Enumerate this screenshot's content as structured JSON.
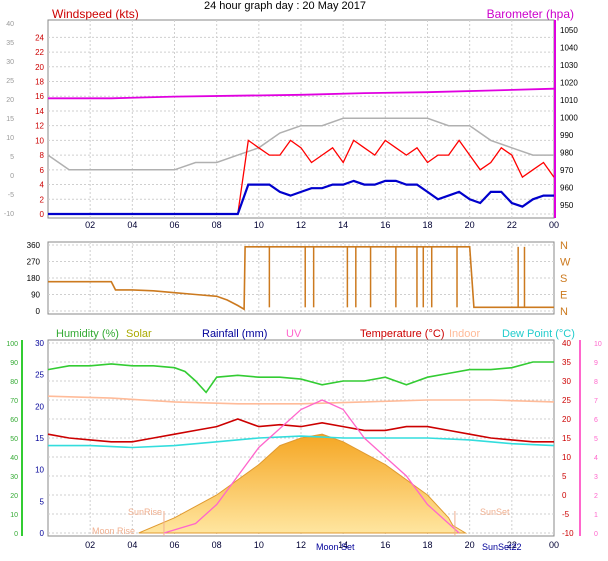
{
  "title": "24 hour graph day : 20 May 2017",
  "colors": {
    "wind_speed": "#ff0000",
    "wind_avg": "#0000cc",
    "gust_grey": "#b0b0b0",
    "barometer": "#e000e0",
    "wind_dir": "#cc7a1f",
    "humidity": "#33cc33",
    "solar": "#cccc00",
    "rainfall": "#000099",
    "uv": "#ff66cc",
    "temperature": "#cc0000",
    "indoor": "#ffbb99",
    "dewpoint": "#33dddd"
  },
  "x_ticks": [
    "02",
    "04",
    "06",
    "08",
    "10",
    "12",
    "14",
    "16",
    "18",
    "20",
    "22",
    "00"
  ],
  "chart_data": [
    {
      "type": "line",
      "panel": "wind",
      "title": "",
      "left_label": "Windspeed (kts)",
      "right_label": "Barometer (hpa)",
      "y_ticks_red": [
        "24",
        "22",
        "20",
        "18",
        "16",
        "14",
        "12",
        "10",
        "8",
        "6",
        "4",
        "2",
        "0"
      ],
      "y_ticks_grey": [
        "40",
        "35",
        "30",
        "25",
        "20",
        "15",
        "10",
        "5",
        "0",
        "-5",
        "-10"
      ],
      "y_ticks_baro": [
        "1050",
        "1040",
        "1030",
        "1020",
        "1010",
        "1000",
        "990",
        "980",
        "970",
        "960",
        "950"
      ],
      "ylim_kts": [
        0,
        25
      ],
      "ylim_baro": [
        945,
        1050
      ],
      "series": [
        {
          "id": "gust",
          "x": [
            0,
            0.5,
            1,
            1.5,
            2,
            2.5,
            3,
            3.5,
            4,
            4.5,
            5,
            5.5,
            6,
            6.5,
            7,
            7.5,
            8,
            8.5,
            9,
            9.5,
            10,
            10.5,
            11,
            11.5,
            12,
            12.5,
            13,
            13.5,
            14,
            14.5,
            15,
            15.5,
            16,
            16.5,
            17,
            17.5,
            18,
            18.5,
            19,
            19.5,
            20,
            20.5,
            21,
            21.5,
            22,
            22.5,
            23,
            23.5,
            24
          ],
          "y": [
            0,
            0,
            0,
            0,
            0,
            0,
            0,
            0,
            0,
            0,
            0,
            0,
            0,
            0,
            0,
            0,
            0,
            0,
            0,
            10,
            9,
            8,
            8,
            10,
            9,
            7,
            8,
            9,
            7,
            10,
            9,
            8,
            10,
            9,
            8,
            9,
            7,
            8,
            8,
            10,
            8,
            6,
            7,
            9,
            8,
            5,
            6,
            7,
            5
          ]
        },
        {
          "id": "avg",
          "x": [
            0,
            0.5,
            1,
            1.5,
            2,
            2.5,
            3,
            3.5,
            4,
            4.5,
            5,
            5.5,
            6,
            6.5,
            7,
            7.5,
            8,
            8.5,
            9,
            9.5,
            10,
            10.5,
            11,
            11.5,
            12,
            12.5,
            13,
            13.5,
            14,
            14.5,
            15,
            15.5,
            16,
            16.5,
            17,
            17.5,
            18,
            18.5,
            19,
            19.5,
            20,
            20.5,
            21,
            21.5,
            22,
            22.5,
            23,
            23.5,
            24
          ],
          "y": [
            0,
            0,
            0,
            0,
            0,
            0,
            0,
            0,
            0,
            0,
            0,
            0,
            0,
            0,
            0,
            0,
            0,
            0,
            0,
            4,
            4,
            4,
            3,
            2.5,
            3,
            3.5,
            3.5,
            4,
            4,
            4.5,
            4,
            4,
            4.5,
            4.5,
            4,
            4,
            3,
            2,
            2.5,
            3,
            2,
            1.5,
            3,
            3,
            1.5,
            1,
            2,
            2.5,
            2.5
          ]
        },
        {
          "id": "baro",
          "x": [
            0,
            3,
            6,
            9,
            12,
            15,
            18,
            21,
            24
          ],
          "y": [
            1011,
            1011,
            1012,
            1012.5,
            1013,
            1014,
            1014.5,
            1015.5,
            1016.5
          ]
        },
        {
          "id": "grey",
          "x": [
            0,
            1,
            2,
            3,
            4,
            5,
            6,
            7,
            8,
            9,
            10,
            11,
            12,
            13,
            14,
            15,
            16,
            17,
            18,
            19,
            20,
            21,
            22,
            23,
            24
          ],
          "y": [
            8,
            6,
            6,
            6,
            6,
            6,
            6,
            7,
            7,
            8,
            9,
            11,
            12,
            12,
            13,
            13,
            13,
            13,
            13,
            12,
            12,
            10,
            9,
            8,
            8
          ]
        }
      ]
    },
    {
      "type": "line",
      "panel": "direction",
      "title": "",
      "y_ticks": [
        "360",
        "270",
        "180",
        "90",
        "0"
      ],
      "compass": [
        "N",
        "W",
        "S",
        "E",
        "N"
      ],
      "ylim": [
        0,
        360
      ],
      "series": [
        {
          "id": "dir",
          "x": [
            0,
            1,
            2,
            3,
            3.2,
            4,
            5,
            6,
            7,
            8,
            8.5,
            9,
            9.3,
            9.35,
            10,
            11,
            12,
            13,
            14,
            15,
            16,
            17,
            18,
            19,
            20,
            20.2,
            21,
            22,
            22.5,
            23,
            24
          ],
          "y": [
            160,
            160,
            160,
            160,
            115,
            115,
            110,
            100,
            90,
            80,
            60,
            30,
            10,
            350,
            350,
            350,
            350,
            350,
            350,
            350,
            350,
            350,
            350,
            350,
            350,
            20,
            20,
            20,
            20,
            20,
            20
          ]
        }
      ]
    },
    {
      "type": "line",
      "panel": "temperature",
      "title": "",
      "legend": [
        "Humidity (%)",
        "Solar",
        "Rainfall (mm)",
        "UV",
        "Temperature (°C)",
        "Indoor",
        "Dew Point (°C)"
      ],
      "y_ticks_hum": [
        "100",
        "90",
        "80",
        "70",
        "60",
        "50",
        "40",
        "30",
        "20",
        "10",
        "0"
      ],
      "y_ticks_rain": [
        "30",
        "25",
        "20",
        "15",
        "10",
        "5",
        "0"
      ],
      "y_ticks_temp": [
        "40",
        "35",
        "30",
        "25",
        "20",
        "15",
        "10",
        "5",
        "0",
        "-5",
        "-10"
      ],
      "y_ticks_uv": [
        "10",
        "9",
        "8",
        "7",
        "6",
        "5",
        "4",
        "3",
        "2",
        "1",
        "0"
      ],
      "ylim_temp": [
        -10,
        40
      ],
      "annotations": [
        "Moon Rise",
        "SunRise",
        "Moon Set",
        "SunSet",
        "SunSet22"
      ],
      "series": [
        {
          "id": "humidity",
          "x": [
            0,
            1,
            2,
            3,
            4,
            5,
            6,
            6.5,
            7,
            7.5,
            8,
            9,
            10,
            11,
            12,
            13,
            14,
            15,
            16,
            17,
            18,
            19,
            20,
            21,
            22,
            23,
            24
          ],
          "y": [
            86,
            88,
            88,
            89,
            88,
            88,
            87,
            85,
            80,
            74,
            82,
            83,
            82,
            82,
            81,
            78,
            80,
            80,
            82,
            78,
            82,
            84,
            86,
            86,
            87,
            90,
            90
          ]
        },
        {
          "id": "temp",
          "x": [
            0,
            1,
            2,
            3,
            4,
            5,
            6,
            7,
            8,
            9,
            10,
            11,
            12,
            13,
            14,
            15,
            16,
            17,
            18,
            19,
            20,
            21,
            22,
            23,
            24
          ],
          "y": [
            16,
            15,
            14.5,
            14,
            14,
            15,
            16,
            17,
            18,
            20,
            18,
            18.5,
            18,
            19,
            18,
            17,
            17,
            18,
            18,
            17,
            16,
            15,
            14.5,
            14,
            14
          ]
        },
        {
          "id": "dew",
          "x": [
            0,
            2,
            4,
            6,
            8,
            10,
            12,
            14,
            16,
            18,
            20,
            22,
            24
          ],
          "y": [
            13,
            13,
            12.5,
            13,
            14,
            15,
            15.5,
            15,
            15,
            15,
            14.5,
            13.5,
            13
          ]
        },
        {
          "id": "indoor",
          "x": [
            0,
            3,
            6,
            9,
            12,
            15,
            18,
            21,
            24
          ],
          "y": [
            26,
            25.5,
            24.5,
            24,
            24,
            24.5,
            25,
            25,
            24.5
          ]
        },
        {
          "id": "solar",
          "x": [
            4.3,
            6,
            8,
            10,
            11,
            12,
            13,
            14,
            16,
            18,
            19,
            19.2,
            19.8
          ],
          "y": [
            -10,
            -6,
            0,
            8,
            13,
            15,
            16,
            14,
            8,
            0,
            -6,
            -8,
            -10
          ]
        },
        {
          "id": "uv",
          "x": [
            5.5,
            7,
            8,
            9,
            10,
            11,
            12,
            13,
            14,
            15,
            16,
            17,
            18,
            19,
            19.5
          ],
          "y": [
            0,
            0.5,
            1.5,
            3,
            4.5,
            5.5,
            6.5,
            7,
            6.5,
            5,
            4,
            3,
            1.5,
            0.5,
            0
          ]
        }
      ]
    }
  ]
}
